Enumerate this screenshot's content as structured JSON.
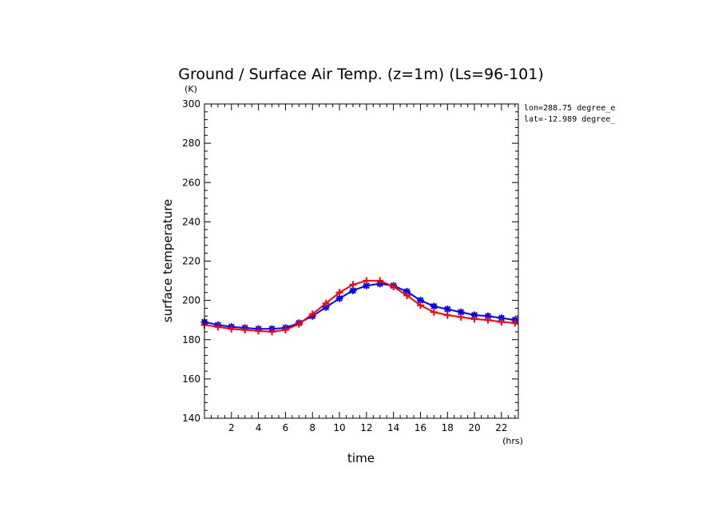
{
  "chart_data": {
    "type": "line",
    "title": "Ground / Surface Air Temp. (z=1m) (Ls=96-101)",
    "xlabel": "time",
    "ylabel": "surface temperature",
    "x_unit": "(hrs)",
    "y_unit": "(K)",
    "xlim": [
      0,
      23.25
    ],
    "ylim": [
      140,
      300
    ],
    "xticks": [
      2,
      4,
      6,
      8,
      10,
      12,
      14,
      16,
      18,
      20,
      22
    ],
    "yticks": [
      140,
      160,
      180,
      200,
      220,
      240,
      260,
      280,
      300
    ],
    "annotations": [
      "lon=288.75 degree_e",
      "lat=-12.989 degree_"
    ],
    "grid": false,
    "series": [
      {
        "color": "#0000ff",
        "marker": "asterisk",
        "x": [
          0,
          1,
          2,
          3,
          4,
          5,
          6,
          7,
          8,
          9,
          10,
          11,
          12,
          13,
          14,
          15,
          16,
          17,
          18,
          19,
          20,
          21,
          22,
          23
        ],
        "values": [
          189,
          187.5,
          186.5,
          186,
          185.5,
          185.5,
          186,
          188.5,
          192,
          196.5,
          201,
          205,
          207.5,
          208.5,
          207.5,
          204.5,
          200,
          197,
          195.5,
          194,
          192.5,
          192,
          191,
          190
        ]
      },
      {
        "color": "#ff0000",
        "marker": "plus",
        "x": [
          0,
          1,
          2,
          3,
          4,
          5,
          6,
          7,
          8,
          9,
          10,
          11,
          12,
          13,
          14,
          15,
          16,
          17,
          18,
          19,
          20,
          21,
          22,
          23
        ],
        "values": [
          187.5,
          186.5,
          185.5,
          185,
          184.5,
          184,
          185,
          188,
          193,
          198.5,
          204,
          208,
          210,
          210,
          207,
          202.5,
          197.5,
          194,
          192.5,
          191.5,
          190.5,
          190,
          189,
          188.5
        ]
      }
    ]
  }
}
